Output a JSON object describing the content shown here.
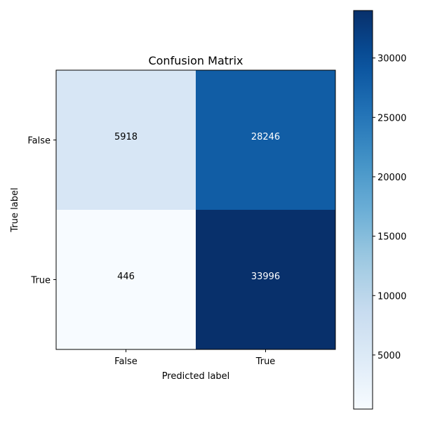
{
  "chart_data": {
    "type": "heatmap",
    "title": "Confusion Matrix",
    "xlabel": "Predicted label",
    "ylabel": "True label",
    "x_categories": [
      "False",
      "True"
    ],
    "y_categories": [
      "False",
      "True"
    ],
    "values": [
      [
        5918,
        28246
      ],
      [
        446,
        33996
      ]
    ],
    "colormap": "Blues",
    "colorbar": {
      "min": 446,
      "max": 33996,
      "ticks": [
        5000,
        10000,
        15000,
        20000,
        25000,
        30000
      ],
      "tick_labels": [
        "5000",
        "10000",
        "15000",
        "20000",
        "25000",
        "30000"
      ]
    },
    "grid": false
  }
}
